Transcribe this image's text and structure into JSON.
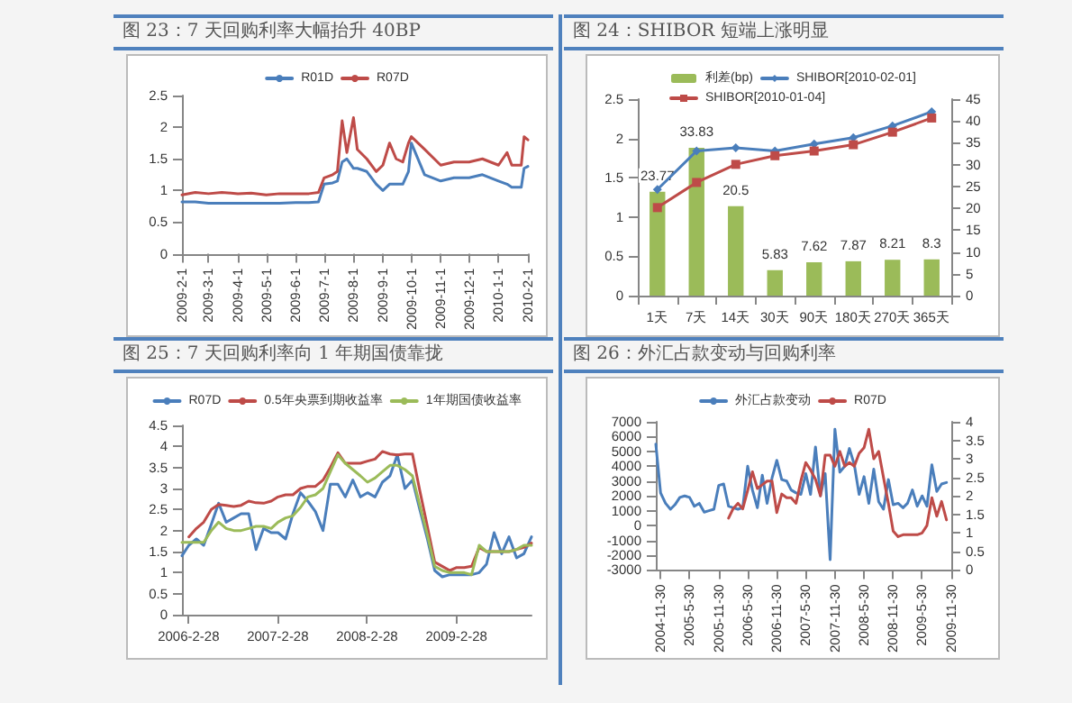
{
  "chart_data": [
    {
      "type": "line",
      "title": "图 23：7 天回购利率大幅抬升 40BP",
      "legend": "top",
      "marker": "none",
      "x": [
        "2009-02-01",
        "2009-02-15",
        "2009-03-01",
        "2009-03-15",
        "2009-04-01",
        "2009-04-15",
        "2009-05-01",
        "2009-05-15",
        "2009-06-01",
        "2009-06-15",
        "2009-06-25",
        "2009-07-01",
        "2009-07-10",
        "2009-07-15",
        "2009-07-20",
        "2009-07-25",
        "2009-08-01",
        "2009-08-05",
        "2009-08-15",
        "2009-08-25",
        "2009-09-01",
        "2009-09-08",
        "2009-09-15",
        "2009-09-22",
        "2009-09-28",
        "2009-10-01",
        "2009-10-15",
        "2009-11-01",
        "2009-11-15",
        "2009-12-01",
        "2009-12-15",
        "2010-01-01",
        "2010-01-10",
        "2010-01-15",
        "2010-01-25",
        "2010-01-28",
        "2010-02-01"
      ],
      "xlim": [
        "2009-02-01",
        "2010-02-01"
      ],
      "xticks": [
        {
          "value": "2009-02-01",
          "label": "2009-2-1"
        },
        {
          "value": "2009-03-01",
          "label": "2009-3-1"
        },
        {
          "value": "2009-04-01",
          "label": "2009-4-1"
        },
        {
          "value": "2009-05-01",
          "label": "2009-5-1"
        },
        {
          "value": "2009-06-01",
          "label": "2009-6-1"
        },
        {
          "value": "2009-07-01",
          "label": "2009-7-1"
        },
        {
          "value": "2009-08-01",
          "label": "2009-8-1"
        },
        {
          "value": "2009-09-01",
          "label": "2009-9-1"
        },
        {
          "value": "2009-10-01",
          "label": "2009-10-1"
        },
        {
          "value": "2009-11-01",
          "label": "2009-11-1"
        },
        {
          "value": "2009-12-01",
          "label": "2009-12-1"
        },
        {
          "value": "2010-01-01",
          "label": "2010-1-1"
        },
        {
          "value": "2010-02-01",
          "label": "2010-2-1"
        }
      ],
      "ylim": [
        0,
        2.5
      ],
      "yticks": [
        0,
        0.5,
        1,
        1.5,
        2,
        2.5
      ],
      "series": [
        {
          "name": "R01D",
          "color": "#4a7ebb",
          "values": [
            0.82,
            0.82,
            0.8,
            0.8,
            0.8,
            0.8,
            0.8,
            0.8,
            0.81,
            0.81,
            0.82,
            1.1,
            1.12,
            1.15,
            1.45,
            1.5,
            1.35,
            1.35,
            1.3,
            1.1,
            1.0,
            1.1,
            1.1,
            1.1,
            1.3,
            1.75,
            1.25,
            1.15,
            1.2,
            1.2,
            1.25,
            1.15,
            1.1,
            1.05,
            1.05,
            1.35,
            1.38
          ]
        },
        {
          "name": "R07D",
          "color": "#be4b48",
          "values": [
            0.93,
            0.97,
            0.95,
            0.97,
            0.95,
            0.96,
            0.93,
            0.95,
            0.95,
            0.95,
            0.97,
            1.2,
            1.25,
            1.3,
            2.1,
            1.6,
            2.15,
            1.65,
            1.5,
            1.3,
            1.4,
            1.75,
            1.5,
            1.45,
            1.75,
            1.85,
            1.65,
            1.4,
            1.45,
            1.45,
            1.5,
            1.4,
            1.6,
            1.4,
            1.4,
            1.85,
            1.8
          ]
        }
      ]
    },
    {
      "type": "bar",
      "title": "图 24：SHIBOR 短端上涨明显",
      "legend": "top",
      "categories": [
        "1天",
        "7天",
        "14天",
        "30天",
        "90天",
        "180天",
        "270天",
        "365天"
      ],
      "ylim": [
        0,
        2.5
      ],
      "yticks": [
        0,
        0.5,
        1,
        1.5,
        2,
        2.5
      ],
      "y2lim": [
        0,
        45
      ],
      "y2ticks": [
        0,
        5,
        10,
        15,
        20,
        25,
        30,
        35,
        40,
        45
      ],
      "series": [
        {
          "name": "利差(bp)",
          "type": "bar",
          "axis": "y2",
          "color": "#9bbb59",
          "values": [
            23.77,
            33.83,
            20.5,
            5.83,
            7.62,
            7.87,
            8.21,
            8.3
          ],
          "value_labels": [
            "23.77",
            "33.83",
            "20.5",
            "5.83",
            "7.62",
            "7.87",
            "8.21",
            "8.3"
          ]
        },
        {
          "name": "SHIBOR[2010-02-01]",
          "type": "line",
          "marker": "diamond",
          "color": "#4a7ebb",
          "values": [
            1.35,
            1.84,
            1.88,
            1.84,
            1.93,
            2.01,
            2.16,
            2.34
          ]
        },
        {
          "name": "SHIBOR[2010-01-04]",
          "type": "line",
          "marker": "square",
          "color": "#be4b48",
          "values": [
            1.12,
            1.44,
            1.67,
            1.78,
            1.84,
            1.92,
            2.08,
            2.26
          ]
        }
      ]
    },
    {
      "type": "line",
      "title": "图 25：7 天回购利率向 1 年期国债靠拢",
      "legend": "top",
      "marker": "none",
      "x": [
        "2006-02",
        "2006-03",
        "2006-04",
        "2006-05",
        "2006-06",
        "2006-07",
        "2006-08",
        "2006-09",
        "2006-10",
        "2006-11",
        "2006-12",
        "2007-01",
        "2007-02",
        "2007-03",
        "2007-04",
        "2007-05",
        "2007-06",
        "2007-07",
        "2007-08",
        "2007-09",
        "2007-10",
        "2007-11",
        "2007-12",
        "2008-01",
        "2008-02",
        "2008-03",
        "2008-04",
        "2008-05",
        "2008-06",
        "2008-07",
        "2008-08",
        "2008-09",
        "2008-10",
        "2008-11",
        "2008-12",
        "2009-01",
        "2009-02",
        "2009-03",
        "2009-04",
        "2009-05",
        "2009-06",
        "2009-07",
        "2009-08",
        "2009-09",
        "2009-10",
        "2009-11",
        "2009-12",
        "2010-01"
      ],
      "xlim": [
        "2006-02",
        "2010-01"
      ],
      "xticks": [
        {
          "value": "2006-02-28",
          "label": "2006-2-28"
        },
        {
          "value": "2007-02-28",
          "label": "2007-2-28"
        },
        {
          "value": "2008-02-28",
          "label": "2008-2-28"
        },
        {
          "value": "2009-02-28",
          "label": "2009-2-28"
        }
      ],
      "ylim": [
        0,
        4.5
      ],
      "yticks": [
        0,
        0.5,
        1,
        1.5,
        2,
        2.5,
        3,
        3.5,
        4,
        4.5
      ],
      "series": [
        {
          "name": "R07D",
          "color": "#4a7ebb",
          "values": [
            1.4,
            1.65,
            1.8,
            1.65,
            2.15,
            2.65,
            2.2,
            2.3,
            2.4,
            2.4,
            1.55,
            2.05,
            1.95,
            1.95,
            1.8,
            2.4,
            2.9,
            2.7,
            2.45,
            2.0,
            3.1,
            3.1,
            2.8,
            3.2,
            2.8,
            2.9,
            2.8,
            3.15,
            3.3,
            3.8,
            3.0,
            3.2,
            2.5,
            1.8,
            1.05,
            0.9,
            0.95,
            0.95,
            0.95,
            0.95,
            1.0,
            1.2,
            1.95,
            1.45,
            1.85,
            1.35,
            1.45,
            1.85
          ]
        },
        {
          "name": "0.5年央票到期收益率",
          "color": "#be4b48",
          "values": [
            null,
            1.85,
            2.05,
            2.2,
            2.5,
            2.62,
            2.6,
            2.57,
            2.6,
            2.7,
            2.66,
            2.65,
            2.7,
            2.8,
            2.85,
            2.85,
            3.0,
            3.05,
            3.05,
            3.2,
            3.5,
            3.85,
            3.6,
            3.6,
            3.6,
            3.65,
            3.7,
            3.88,
            3.82,
            3.8,
            3.82,
            3.82,
            2.95,
            2.1,
            1.25,
            1.15,
            1.05,
            1.12,
            1.12,
            1.15,
            1.6,
            1.5,
            1.5,
            1.5,
            1.5,
            1.55,
            1.6,
            1.7
          ]
        },
        {
          "name": "1年期国债收益率",
          "color": "#9bbb59",
          "values": [
            1.72,
            1.72,
            1.72,
            1.72,
            2.0,
            2.2,
            2.05,
            2.0,
            2.0,
            2.05,
            2.1,
            2.1,
            2.05,
            2.2,
            2.3,
            2.35,
            2.55,
            2.8,
            2.85,
            3.0,
            3.4,
            3.8,
            3.6,
            3.45,
            3.3,
            3.15,
            3.25,
            3.4,
            3.55,
            3.55,
            3.45,
            3.3,
            2.6,
            1.9,
            1.15,
            1.05,
            1.0,
            1.0,
            1.0,
            0.95,
            1.65,
            1.5,
            1.5,
            1.5,
            1.5,
            1.55,
            1.65,
            1.65
          ]
        }
      ]
    },
    {
      "type": "line",
      "title": "图 26：外汇占款变动与回购利率",
      "legend": "top",
      "marker": "none",
      "x": [
        "2004-11",
        "2004-12",
        "2005-01",
        "2005-02",
        "2005-03",
        "2005-04",
        "2005-05",
        "2005-06",
        "2005-07",
        "2005-08",
        "2005-09",
        "2005-10",
        "2005-11",
        "2005-12",
        "2006-01",
        "2006-02",
        "2006-03",
        "2006-04",
        "2006-05",
        "2006-06",
        "2006-07",
        "2006-08",
        "2006-09",
        "2006-10",
        "2006-11",
        "2006-12",
        "2007-01",
        "2007-02",
        "2007-03",
        "2007-04",
        "2007-05",
        "2007-06",
        "2007-07",
        "2007-08",
        "2007-09",
        "2007-10",
        "2007-11",
        "2007-12",
        "2008-01",
        "2008-02",
        "2008-03",
        "2008-04",
        "2008-05",
        "2008-06",
        "2008-07",
        "2008-08",
        "2008-09",
        "2008-10",
        "2008-11",
        "2008-12",
        "2009-01",
        "2009-02",
        "2009-03",
        "2009-04",
        "2009-05",
        "2009-06",
        "2009-07",
        "2009-08",
        "2009-09",
        "2009-10",
        "2009-11"
      ],
      "xlim": [
        "2004-11",
        "2009-12"
      ],
      "xticks": [
        {
          "value": "2004-11-30",
          "label": "2004-11-30"
        },
        {
          "value": "2005-05-30",
          "label": "2005-5-30"
        },
        {
          "value": "2005-11-30",
          "label": "2005-11-30"
        },
        {
          "value": "2006-05-30",
          "label": "2006-5-30"
        },
        {
          "value": "2006-11-30",
          "label": "2006-11-30"
        },
        {
          "value": "2007-05-30",
          "label": "2007-5-30"
        },
        {
          "value": "2007-11-30",
          "label": "2007-11-30"
        },
        {
          "value": "2008-05-30",
          "label": "2008-5-30"
        },
        {
          "value": "2008-11-30",
          "label": "2008-11-30"
        },
        {
          "value": "2009-05-30",
          "label": "2009-5-30"
        },
        {
          "value": "2009-11-30",
          "label": "2009-11-30"
        }
      ],
      "ylim": [
        -3000,
        7000
      ],
      "yticks": [
        -3000,
        -2000,
        -1000,
        0,
        1000,
        2000,
        3000,
        4000,
        5000,
        6000,
        7000
      ],
      "y2lim": [
        0,
        4
      ],
      "y2ticks": [
        0,
        0.5,
        1,
        1.5,
        2,
        2.5,
        3,
        3.5,
        4
      ],
      "series": [
        {
          "name": "外汇占款变动",
          "color": "#4a7ebb",
          "values": [
            5500,
            2200,
            1500,
            1100,
            1400,
            1900,
            2000,
            1900,
            1300,
            1500,
            900,
            1000,
            1100,
            2700,
            2800,
            1300,
            1200,
            1100,
            1200,
            4000,
            2400,
            1200,
            3400,
            1500,
            3200,
            4400,
            3100,
            3000,
            2400,
            2200,
            2100,
            3500,
            2100,
            5300,
            2000,
            3500,
            -2300,
            6500,
            3600,
            4000,
            5200,
            4100,
            2100,
            3300,
            1500,
            3800,
            1600,
            1100,
            3100,
            1400,
            1500,
            1200,
            1500,
            2400,
            1300,
            2000,
            1300,
            4100,
            2300,
            2800,
            2900
          ]
        },
        {
          "name": "R07D",
          "axis": "y2",
          "color": "#be4b48",
          "values": [
            null,
            null,
            null,
            null,
            null,
            null,
            null,
            null,
            null,
            null,
            null,
            null,
            null,
            null,
            null,
            1.4,
            1.65,
            1.8,
            1.65,
            2.15,
            2.65,
            2.2,
            2.3,
            2.4,
            2.4,
            1.55,
            2.05,
            1.95,
            1.95,
            1.8,
            2.4,
            2.9,
            2.7,
            2.45,
            2.0,
            3.1,
            3.1,
            2.8,
            3.2,
            2.8,
            2.9,
            2.8,
            3.15,
            3.3,
            3.8,
            3.0,
            3.2,
            2.5,
            1.8,
            1.05,
            0.9,
            0.95,
            0.95,
            0.95,
            0.95,
            1.0,
            1.2,
            1.95,
            1.45,
            1.85,
            1.35
          ]
        }
      ]
    }
  ]
}
